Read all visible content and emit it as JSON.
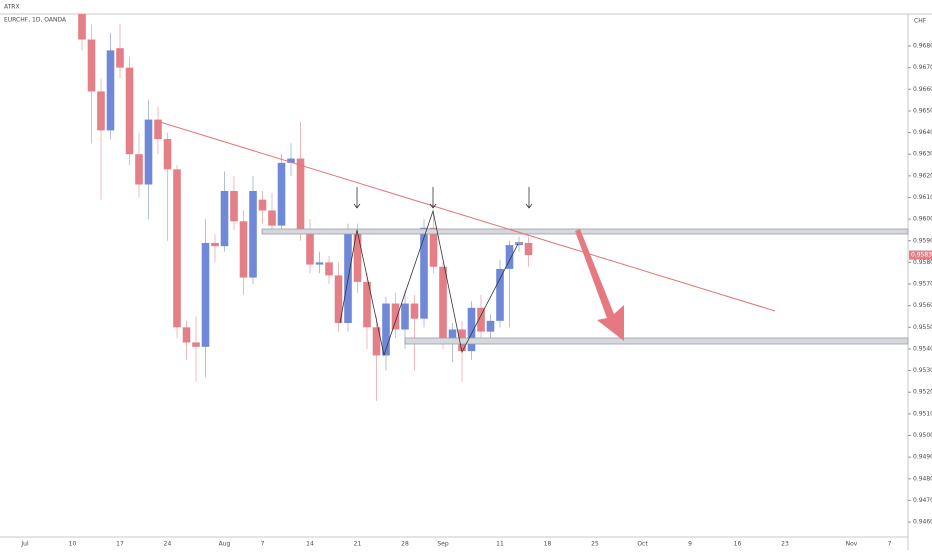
{
  "chart_data": {
    "type": "candlestick",
    "title": "ATRX",
    "subtitle": "EURCHF, 1D, OANDA",
    "currency": "CHF",
    "up_color": "#7088d8",
    "down_color": "#e47f88",
    "last_price": 0.95834,
    "categories": [
      "Jul",
      null,
      null,
      null,
      null,
      "10",
      null,
      null,
      null,
      null,
      "17",
      null,
      null,
      null,
      null,
      "24",
      null,
      null,
      null,
      null,
      null,
      "Aug",
      null,
      null,
      null,
      "7",
      null,
      null,
      null,
      null,
      "14",
      null,
      null,
      null,
      null,
      "21",
      null,
      null,
      null,
      null,
      "28",
      null,
      null,
      null,
      "Sep",
      null,
      null,
      null,
      null,
      null,
      "11",
      null,
      null,
      null,
      null,
      "18",
      null,
      null,
      null,
      null,
      "25",
      null,
      null,
      null,
      null,
      "Oct",
      null,
      null,
      null,
      null,
      "9",
      null,
      null,
      null,
      null,
      "16",
      null,
      null,
      null,
      null,
      "23",
      null,
      null,
      null,
      null,
      null,
      null,
      "Nov",
      null,
      null,
      null,
      "7"
    ],
    "open": [
      null,
      null,
      null,
      null,
      null,
      null,
      0.9695,
      0.9683,
      0.9659,
      0.9641,
      0.9679,
      0.967,
      0.963,
      0.9616,
      0.9646,
      0.9637,
      0.9623,
      0.955,
      0.9543,
      0.9541,
      0.9589,
      0.95875,
      0.9613,
      0.9599,
      0.9573,
      0.9609,
      0.9604,
      0.9597,
      0.9626,
      0.9628,
      0.9595,
      0.9579,
      0.958,
      0.9574,
      0.9552,
      0.9595,
      0.9571,
      0.955,
      0.9537,
      0.9561,
      0.9549,
      0.9561,
      0.9554,
      0.9596,
      0.9578,
      0.9544,
      0.9549,
      0.9539,
      0.9559,
      0.9548,
      0.9553,
      0.9577,
      0.9588,
      0.9589,
      null,
      null,
      null,
      null,
      null,
      null,
      null,
      null,
      null,
      null,
      null,
      null,
      null,
      null,
      null,
      null,
      null,
      null,
      null,
      null,
      null,
      null,
      null,
      null,
      null,
      null,
      null,
      null,
      null,
      null,
      null,
      null,
      null,
      null,
      null,
      null,
      null,
      null
    ],
    "high": [
      null,
      null,
      null,
      null,
      null,
      null,
      0.97,
      0.969,
      0.9665,
      0.9686,
      0.969,
      0.9675,
      0.964,
      0.9655,
      0.9652,
      0.964,
      0.9625,
      0.9553,
      0.9555,
      0.96,
      0.9593,
      0.9622,
      0.962,
      0.9604,
      0.962,
      0.9613,
      0.9612,
      0.963,
      0.9635,
      0.9645,
      0.96,
      0.9585,
      0.9583,
      0.958,
      0.9598,
      0.9598,
      0.9575,
      0.9555,
      0.9564,
      0.9566,
      0.9567,
      0.9565,
      0.96,
      0.9603,
      0.958,
      0.9552,
      0.9553,
      0.9562,
      0.9565,
      0.9556,
      0.9581,
      0.959,
      0.9592,
      0.9592,
      null,
      null,
      null,
      null,
      null,
      null,
      null,
      null,
      null,
      null,
      null,
      null,
      null,
      null,
      null,
      null,
      null,
      null,
      null,
      null,
      null,
      null,
      null,
      null,
      null,
      null,
      null,
      null,
      null,
      null,
      null,
      null,
      null,
      null,
      null,
      null,
      null,
      null
    ],
    "low": [
      null,
      null,
      null,
      null,
      null,
      null,
      0.9678,
      0.9635,
      0.9609,
      0.9637,
      0.9665,
      0.9625,
      0.961,
      0.96,
      0.963,
      0.959,
      0.9545,
      0.9535,
      0.9525,
      0.9527,
      0.958,
      0.9585,
      0.9595,
      0.9565,
      0.957,
      0.9598,
      0.9593,
      0.9593,
      0.962,
      0.959,
      0.9575,
      0.9575,
      0.957,
      0.9548,
      0.9548,
      0.9566,
      0.954,
      0.9516,
      0.953,
      0.9545,
      0.954,
      0.953,
      0.955,
      0.9575,
      0.954,
      0.9534,
      0.9525,
      0.9535,
      0.9545,
      0.9545,
      0.955,
      0.955,
      0.9585,
      0.9578,
      null,
      null,
      null,
      null,
      null,
      null,
      null,
      null,
      null,
      null,
      null,
      null,
      null,
      null,
      null,
      null,
      null,
      null,
      null,
      null,
      null,
      null,
      null,
      null,
      null,
      null,
      null,
      null,
      null,
      null,
      null,
      null,
      null,
      null,
      null,
      null,
      null,
      null
    ],
    "close": [
      null,
      null,
      null,
      null,
      null,
      null,
      0.9683,
      0.9659,
      0.9641,
      0.9678,
      0.967,
      0.963,
      0.9616,
      0.9646,
      0.9637,
      0.9623,
      0.955,
      0.9543,
      0.9541,
      0.9589,
      0.95875,
      0.9613,
      0.9599,
      0.9573,
      0.9613,
      0.9604,
      0.9597,
      0.9626,
      0.9628,
      0.9595,
      0.9579,
      0.958,
      0.9574,
      0.9552,
      0.9595,
      0.9571,
      0.955,
      0.9537,
      0.9561,
      0.9549,
      0.9561,
      0.9554,
      0.9596,
      0.9578,
      0.9544,
      0.9549,
      0.9539,
      0.9559,
      0.9548,
      0.9553,
      0.9577,
      0.9588,
      0.9589,
      0.95834,
      null,
      null,
      null,
      null,
      null,
      null,
      null,
      null,
      null,
      null,
      null,
      null,
      null,
      null,
      null,
      null,
      null,
      null,
      null,
      null,
      null,
      null,
      null,
      null,
      null,
      null,
      null,
      null,
      null,
      null,
      null,
      null,
      null,
      null,
      null,
      null,
      null,
      null
    ],
    "ylim": [
      0.94531,
      0.96948
    ],
    "yticks": [
      {
        "value": 0.946,
        "label": "0.94600"
      },
      {
        "value": 0.947,
        "label": "0.94700"
      },
      {
        "value": 0.948,
        "label": "0.94800"
      },
      {
        "value": 0.949,
        "label": "0.94900"
      },
      {
        "value": 0.95,
        "label": "0.95000"
      },
      {
        "value": 0.951,
        "label": "0.95100"
      },
      {
        "value": 0.952,
        "label": "0.95200"
      },
      {
        "value": 0.953,
        "label": "0.95300"
      },
      {
        "value": 0.954,
        "label": "0.95400"
      },
      {
        "value": 0.955,
        "label": "0.95500"
      },
      {
        "value": 0.956,
        "label": "0.95600"
      },
      {
        "value": 0.957,
        "label": "0.95700"
      },
      {
        "value": 0.958,
        "label": "0.95800"
      },
      {
        "value": 0.959,
        "label": "0.95900"
      },
      {
        "value": 0.96,
        "label": "0.96000"
      },
      {
        "value": 0.961,
        "label": "0.96100"
      },
      {
        "value": 0.962,
        "label": "0.96200"
      },
      {
        "value": 0.963,
        "label": "0.96300"
      },
      {
        "value": 0.964,
        "label": "0.96400"
      },
      {
        "value": 0.965,
        "label": "0.96500"
      },
      {
        "value": 0.966,
        "label": "0.96600"
      },
      {
        "value": 0.967,
        "label": "0.96700"
      },
      {
        "value": 0.968,
        "label": "0.96800"
      }
    ]
  }
}
